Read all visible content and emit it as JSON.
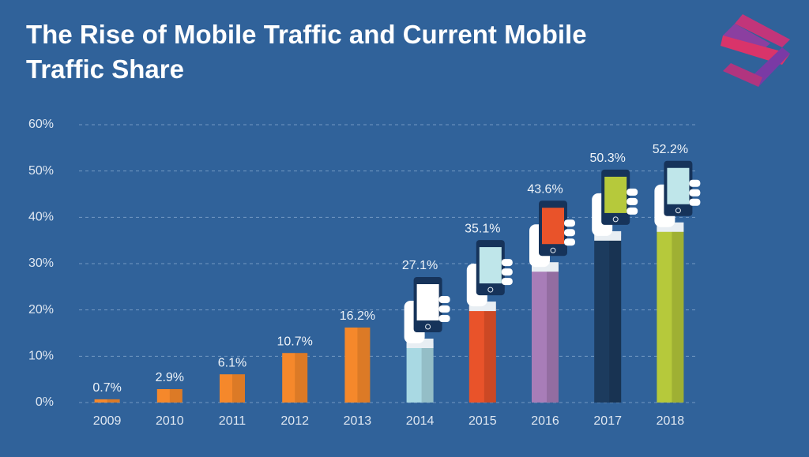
{
  "chart_data": {
    "type": "bar",
    "title": "The Rise of Mobile Traffic and Current Mobile Traffic Share",
    "categories": [
      "2009",
      "2010",
      "2011",
      "2012",
      "2013",
      "2014",
      "2015",
      "2016",
      "2017",
      "2018"
    ],
    "values": [
      0.7,
      2.9,
      6.1,
      10.7,
      16.2,
      27.1,
      35.1,
      43.6,
      50.3,
      52.2
    ],
    "value_labels": [
      "0.7%",
      "2.9%",
      "6.1%",
      "10.7%",
      "16.2%",
      "27.1%",
      "35.1%",
      "43.6%",
      "50.3%",
      "52.2%"
    ],
    "colors": [
      "#f5882b",
      "#f5882b",
      "#f5882b",
      "#f5882b",
      "#f5882b",
      "#a9d9e3",
      "#e9532a",
      "#a87db8",
      "#1c3b5e",
      "#b6c93b"
    ],
    "screen_colors": [
      null,
      null,
      null,
      null,
      null,
      "#ffffff",
      "#bfe6ea",
      "#e9532a",
      "#b6c93b",
      "#bfe6ea"
    ],
    "ylim": [
      0,
      60
    ],
    "yticks": [
      {
        "value": 0,
        "label": "0%"
      },
      {
        "value": 10,
        "label": "10%"
      },
      {
        "value": 20,
        "label": "20%"
      },
      {
        "value": 30,
        "label": "30%"
      },
      {
        "value": 40,
        "label": "40%"
      },
      {
        "value": 50,
        "label": "50%"
      },
      {
        "value": 60,
        "label": "60%"
      }
    ],
    "grid": true
  }
}
